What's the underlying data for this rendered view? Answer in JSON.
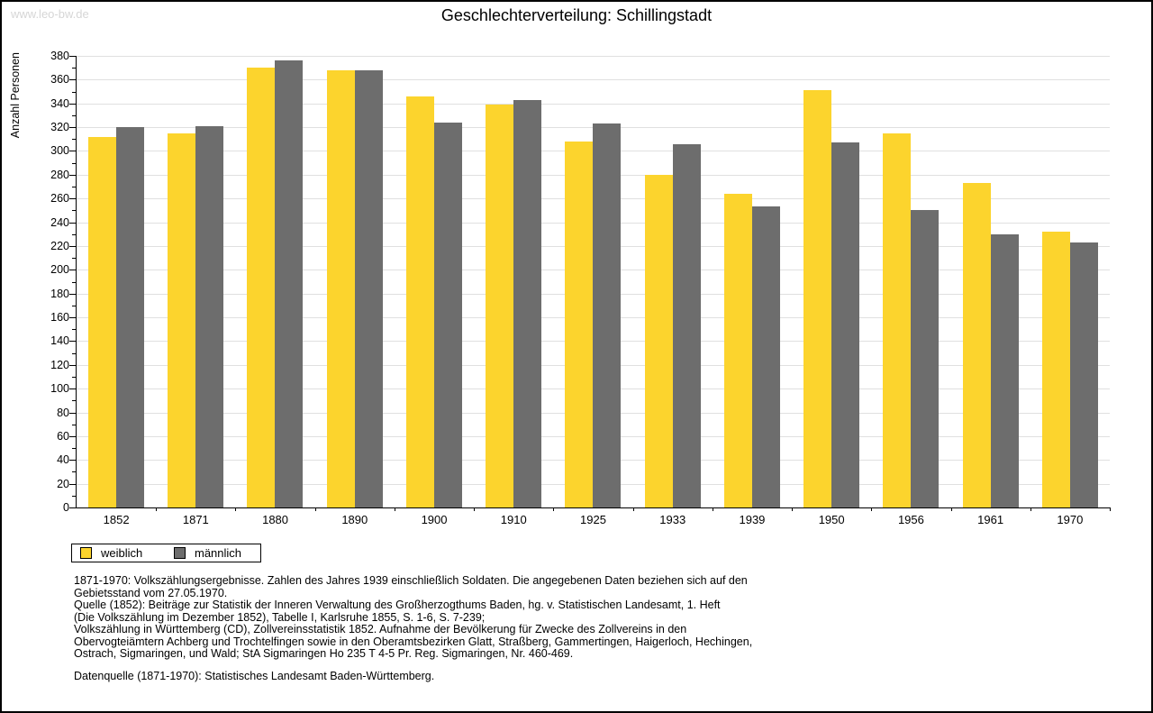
{
  "watermark": "www.leo-bw.de",
  "title": "Geschlechterverteilung: Schillingstadt",
  "chart_data": {
    "type": "bar",
    "title": "Geschlechterverteilung: Schillingstadt",
    "xlabel": "",
    "ylabel": "Anzahl Personen",
    "ylim": [
      0,
      380
    ],
    "ytick_step": 20,
    "ytick_minor_step": 10,
    "grid": true,
    "legend_position": "bottom-left",
    "categories": [
      "1852",
      "1871",
      "1880",
      "1890",
      "1900",
      "1910",
      "1925",
      "1933",
      "1939",
      "1950",
      "1956",
      "1961",
      "1970"
    ],
    "series": [
      {
        "name": "weiblich",
        "color": "#FCD42D",
        "values": [
          312,
          315,
          370,
          368,
          346,
          339,
          308,
          280,
          264,
          351,
          315,
          273,
          232
        ]
      },
      {
        "name": "männlich",
        "color": "#6D6D6D",
        "values": [
          320,
          321,
          376,
          368,
          324,
          343,
          323,
          306,
          253,
          307,
          250,
          230,
          223
        ]
      }
    ]
  },
  "colors": {
    "gridline": "#e0e0e0",
    "axis": "#000000",
    "watermark": "#d6d6d6"
  },
  "footer": {
    "lines": [
      "1871-1970: Volkszählungsergebnisse. Zahlen des Jahres 1939 einschließlich Soldaten. Die angegebenen Daten beziehen sich auf den",
      "Gebietsstand vom 27.05.1970.",
      "Quelle (1852): Beiträge zur Statistik der Inneren Verwaltung des Großherzogthums Baden, hg. v. Statistischen Landesamt, 1. Heft",
      "(Die Volkszählung im Dezember 1852), Tabelle I, Karlsruhe 1855, S. 1-6, S. 7-239;",
      "Volkszählung in Württemberg (CD), Zollvereinsstatistik 1852. Aufnahme der Bevölkerung für Zwecke des Zollvereins in den",
      "Obervogteiämtern Achberg und Trochtelfingen sowie in den Oberamtsbezirken Glatt, Straßberg, Gammertingen, Haigerloch, Hechingen,",
      "Ostrach, Sigmaringen, und Wald; StA Sigmaringen Ho 235 T 4-5 Pr. Reg. Sigmaringen, Nr. 460-469."
    ],
    "source": "Datenquelle (1871-1970): Statistisches Landesamt Baden-Württemberg."
  }
}
